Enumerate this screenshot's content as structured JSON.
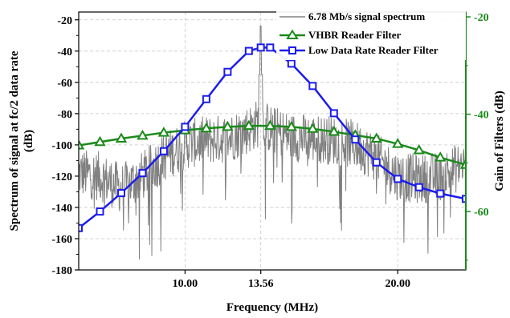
{
  "chart_data": {
    "type": "line",
    "xlabel": "Frequency (MHz)",
    "ylabel_left_line1": "Spectrum of signal at fc/2 data rate",
    "ylabel_left_line2": "(dB)",
    "ylabel_right": "Gain of Filters (dB)",
    "x_ticks": [
      10.0,
      13.56,
      20.0
    ],
    "x_tick_labels": [
      "10.00",
      "13.56",
      "20.00"
    ],
    "xlim": [
      5.0,
      23.2
    ],
    "ylim_left": [
      -180,
      -15
    ],
    "y_ticks_left": [
      -20,
      -40,
      -60,
      -80,
      -100,
      -120,
      -140,
      -160,
      -180
    ],
    "ylim_right": [
      -72,
      -19
    ],
    "y_ticks_right": [
      -20,
      -40,
      -60
    ],
    "grid": true,
    "legend_position": "top-right",
    "colors": {
      "spectrum": "#808080",
      "vhbr": "#1a8a1a",
      "ldr": "#1c1cee",
      "left_axis": "#000000",
      "right_axis": "#1a8a1a"
    },
    "series": [
      {
        "name": "6.78 Mb/s signal spectrum",
        "axis": "left",
        "style": "noisy-line",
        "envelope_x": [
          5.0,
          6.0,
          7.0,
          8.0,
          9.0,
          10.0,
          11.0,
          12.0,
          13.0,
          13.56,
          14.0,
          15.0,
          16.0,
          17.0,
          18.0,
          19.0,
          20.0,
          21.0,
          22.0,
          23.2
        ],
        "envelope_y": [
          -118,
          -120,
          -128,
          -120,
          -108,
          -100,
          -97,
          -96,
          -90,
          -85,
          -90,
          -95,
          -96,
          -97,
          -100,
          -108,
          -120,
          -122,
          -120,
          -112
        ],
        "peak_x": 13.56,
        "peak_y": -24
      },
      {
        "name": "VHBR Reader Filter",
        "axis": "right",
        "marker": "triangle",
        "x": [
          5.0,
          6.0,
          7.0,
          8.0,
          9.0,
          10.0,
          11.0,
          12.0,
          13.0,
          14.0,
          15.0,
          16.0,
          17.0,
          18.0,
          19.0,
          20.0,
          21.0,
          22.0,
          23.2
        ],
        "y": [
          -46.4,
          -45.7,
          -45.0,
          -44.4,
          -43.8,
          -43.3,
          -42.9,
          -42.6,
          -42.4,
          -42.4,
          -42.6,
          -43.0,
          -43.6,
          -44.3,
          -45.0,
          -46.1,
          -47.4,
          -48.9,
          -50.4
        ]
      },
      {
        "name": "Low Data Rate Reader Filter",
        "axis": "right",
        "marker": "square",
        "x": [
          5.0,
          6.0,
          7.0,
          8.0,
          9.0,
          10.0,
          11.0,
          12.0,
          13.0,
          13.56,
          14.0,
          15.0,
          16.0,
          17.0,
          18.0,
          19.0,
          20.0,
          21.0,
          22.0,
          23.2
        ],
        "y": [
          -63.4,
          -60.0,
          -56.2,
          -52.1,
          -47.6,
          -42.6,
          -36.9,
          -31.3,
          -27.0,
          -26.3,
          -26.3,
          -29.6,
          -34.2,
          -39.8,
          -45.2,
          -49.9,
          -53.3,
          -55.0,
          -56.3,
          -57.4
        ]
      }
    ]
  }
}
